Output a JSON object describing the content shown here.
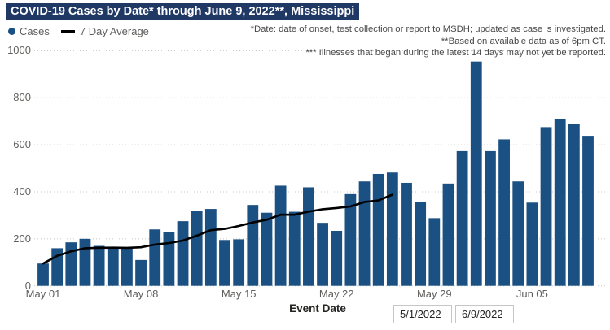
{
  "title": "COVID-19 Cases by Date* through June 9, 2022**, Mississippi",
  "legend": {
    "cases_label": "Cases",
    "avg_label": "7 Day Average"
  },
  "annotations": [
    "*Date: date of onset, test collection or report to MSDH; updated as case is investigated.",
    "**Based on available data as of 6pm CT.",
    "*** Illnesses that began during the latest 14 days may not yet be reported."
  ],
  "x_axis_title": "Event Date",
  "slicer": {
    "start_value": "5/1/2022",
    "end_value": "6/9/2022"
  },
  "colors": {
    "bar": "#1B5083",
    "title_bg": "#1F3864",
    "avg_line": "#000000",
    "axis_text": "#605E5C",
    "gridline": "#C8C6C4"
  },
  "chart_data": {
    "type": "bar",
    "title": "COVID-19 Cases by Date through June 9, 2022, Mississippi",
    "xlabel": "Event Date",
    "ylabel": "",
    "ylim": [
      0,
      1000
    ],
    "y_ticks": [
      0,
      200,
      400,
      600,
      800,
      1000
    ],
    "grid": "dotted-horizontal",
    "x_tick_labels": [
      "May 01",
      "May 08",
      "May 15",
      "May 22",
      "May 29",
      "Jun 05"
    ],
    "x_tick_days": [
      1,
      8,
      15,
      22,
      29,
      36
    ],
    "x_start_date": "5/1/2022",
    "x_end_date": "6/9/2022",
    "series": [
      {
        "name": "Cases",
        "type": "bar",
        "values": [
          95,
          160,
          185,
          200,
          170,
          165,
          158,
          110,
          240,
          230,
          275,
          318,
          327,
          195,
          198,
          344,
          311,
          426,
          315,
          419,
          268,
          234,
          390,
          444,
          476,
          482,
          438,
          357,
          288,
          435,
          573,
          954,
          573,
          623,
          444,
          354,
          675,
          709,
          689,
          638
        ]
      },
      {
        "name": "7 Day Average",
        "type": "line",
        "values": [
          95,
          127.5,
          146.7,
          160,
          162,
          162.5,
          161.9,
          164,
          175.4,
          181.9,
          192.6,
          213.7,
          236.9,
          242.1,
          254.7,
          269.6,
          281.1,
          302.7,
          302.3,
          315.4,
          325.9,
          331,
          337.6,
          356.6,
          363.7,
          387.6
        ]
      }
    ]
  }
}
